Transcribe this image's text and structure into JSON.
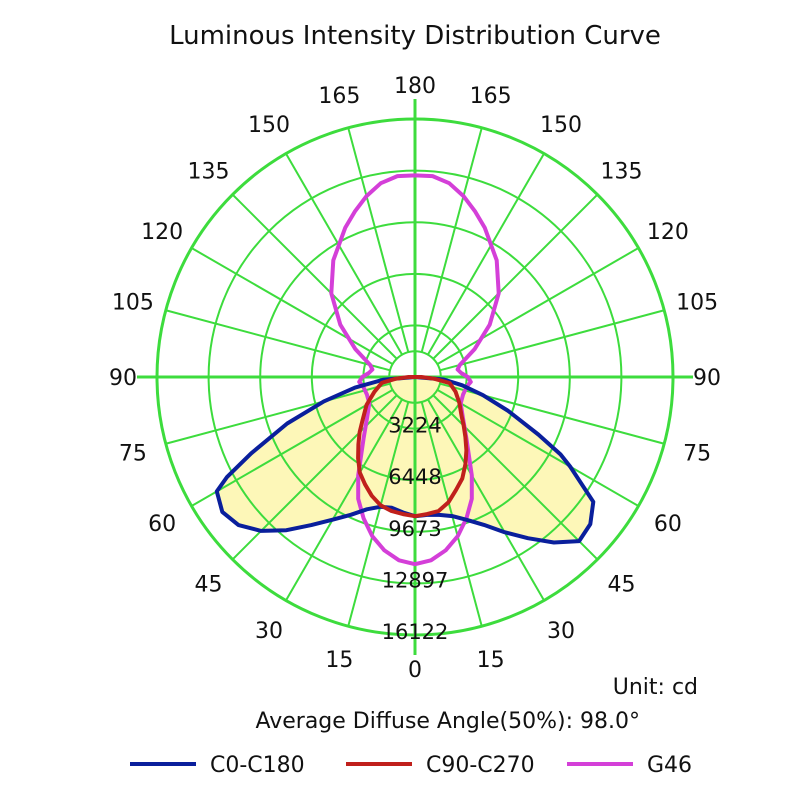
{
  "chart_data": {
    "type": "polar",
    "title": "Luminous Intensity Distribution Curve",
    "unit": "Unit: cd",
    "note": "Average Diffuse Angle(50%): 98.0°",
    "radial_ticks": [
      "3224",
      "6448",
      "9673",
      "12897",
      "16122"
    ],
    "radial_max": 16122,
    "angle_labels": {
      "left": [
        "0",
        "15",
        "30",
        "45",
        "60",
        "75",
        "90",
        "105",
        "120",
        "135",
        "150",
        "165",
        "180"
      ],
      "right": [
        "0",
        "15",
        "30",
        "45",
        "60",
        "75",
        "90",
        "105",
        "120",
        "135",
        "150",
        "165",
        "180"
      ]
    },
    "grid_color": "#3ddc3d",
    "fill_color": "#fdf7b8",
    "series": [
      {
        "name": "C0-C180",
        "color": "#0a1f9c",
        "angles": [
          0,
          5,
          10,
          15,
          20,
          25,
          30,
          35,
          40,
          45,
          50,
          55,
          60,
          62,
          65,
          70,
          75,
          80,
          85,
          90
        ],
        "right": [
          8700,
          8650,
          8750,
          9000,
          9500,
          10200,
          11200,
          12300,
          13500,
          14500,
          14300,
          13600,
          11200,
          10300,
          8500,
          6200,
          4400,
          3000,
          1800,
          0
        ],
        "left": [
          8700,
          8500,
          8300,
          8400,
          8800,
          9500,
          10300,
          11300,
          12500,
          13600,
          14400,
          14700,
          14300,
          13300,
          11300,
          8500,
          5900,
          3800,
          2000,
          0
        ]
      },
      {
        "name": "C90-C270",
        "color": "#c0201c",
        "angles": [
          0,
          5,
          10,
          15,
          20,
          25,
          30,
          35,
          40,
          45,
          50,
          60,
          70,
          80,
          85,
          90
        ],
        "right": [
          8700,
          8600,
          8500,
          8100,
          7500,
          7000,
          6300,
          5600,
          4900,
          4300,
          3800,
          3200,
          2700,
          2200,
          1200,
          400
        ],
        "left": [
          8700,
          8600,
          8500,
          8300,
          7900,
          7400,
          6900,
          6200,
          5500,
          4900,
          4300,
          3500,
          2700,
          2100,
          1200,
          400
        ]
      },
      {
        "name": "G46",
        "color": "#d43fd8",
        "angles": [
          0,
          5,
          10,
          15,
          20,
          25,
          30,
          40,
          50,
          60,
          70,
          80,
          85,
          90,
          95,
          100,
          105,
          115,
          125,
          135,
          145,
          155,
          160,
          165,
          170,
          175,
          180
        ],
        "right": [
          11700,
          11500,
          11000,
          10300,
          9400,
          8400,
          7100,
          5000,
          3900,
          3300,
          3200,
          3300,
          3500,
          3300,
          2900,
          2700,
          2900,
          4100,
          5700,
          7400,
          8900,
          10300,
          11000,
          11700,
          12300,
          12600,
          12600
        ],
        "left": [
          11700,
          11500,
          11000,
          10300,
          9400,
          8400,
          7100,
          5000,
          3900,
          3300,
          3200,
          3300,
          3500,
          3300,
          2900,
          2700,
          2900,
          4100,
          5700,
          7400,
          8900,
          10300,
          11000,
          11700,
          12300,
          12600,
          12600
        ]
      }
    ],
    "legend": [
      {
        "name": "C0-C180",
        "color": "#0a1f9c"
      },
      {
        "name": "C90-C270",
        "color": "#c0201c"
      },
      {
        "name": "G46",
        "color": "#d43fd8"
      }
    ]
  }
}
